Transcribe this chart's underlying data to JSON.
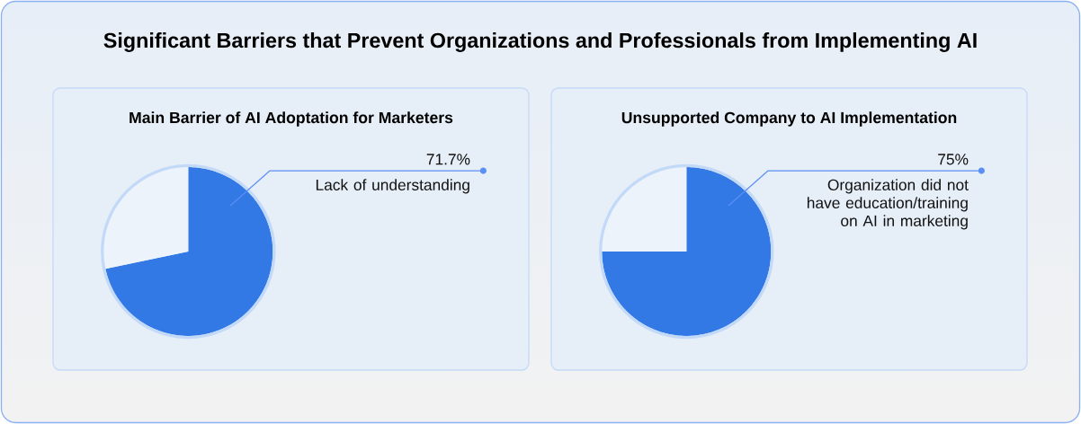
{
  "chart_data": [
    {
      "type": "other",
      "title": "Significant Barriers that Prevent Organizations and Professionals from Implementing AI"
    },
    {
      "type": "pie",
      "title": "Main Barrier of AI Adoptation for Marketers",
      "categories": [
        "Lack of understanding",
        null
      ],
      "values": [
        71.7,
        28.3
      ],
      "colors": [
        "#3279e6",
        "#edf3fb"
      ],
      "value_labels": [
        "71.7%",
        null
      ]
    },
    {
      "type": "pie",
      "title": "Unsupported Company to AI Implementation",
      "categories": [
        "Organization did not have education/training on AI in marketing",
        null
      ],
      "values": [
        75,
        25
      ],
      "colors": [
        "#3279e6",
        "#edf3fb"
      ],
      "value_labels": [
        "75%",
        null
      ]
    }
  ]
}
